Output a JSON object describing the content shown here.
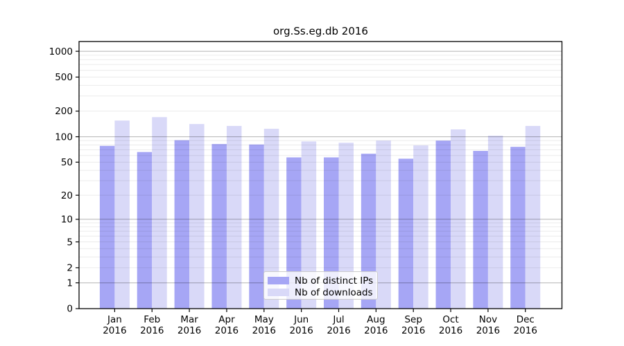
{
  "chart_data": {
    "type": "bar",
    "title": "org.Ss.eg.db 2016",
    "categories": [
      "Jan",
      "Feb",
      "Mar",
      "Apr",
      "May",
      "Jun",
      "Jul",
      "Aug",
      "Sep",
      "Oct",
      "Nov",
      "Dec"
    ],
    "x_tick_year": "2016",
    "series": [
      {
        "name": "Nb of distinct IPs",
        "color": "#a6a6f5",
        "values": [
          78,
          66,
          91,
          82,
          81,
          57,
          57,
          63,
          55,
          90,
          68,
          76
        ]
      },
      {
        "name": "Nb of downloads",
        "color": "#d9d9f8",
        "values": [
          155,
          170,
          141,
          134,
          124,
          88,
          85,
          90,
          79,
          122,
          103,
          134
        ]
      }
    ],
    "xlabel": "",
    "ylabel": "",
    "y_scale": "log10(value+1)",
    "ylim": [
      0,
      1300
    ],
    "y_ticks": [
      0,
      1,
      2,
      5,
      10,
      20,
      50,
      100,
      200,
      500,
      1000
    ],
    "y_major_gridlines": [
      1,
      10,
      100,
      1000
    ],
    "grid": true,
    "legend_position": "lower center",
    "colors": {
      "background": "#ffffff",
      "spine": "#000000",
      "tick_text": "#000000",
      "major_grid": "#b0b0b0",
      "minor_grid": "#e9e9e9"
    }
  }
}
